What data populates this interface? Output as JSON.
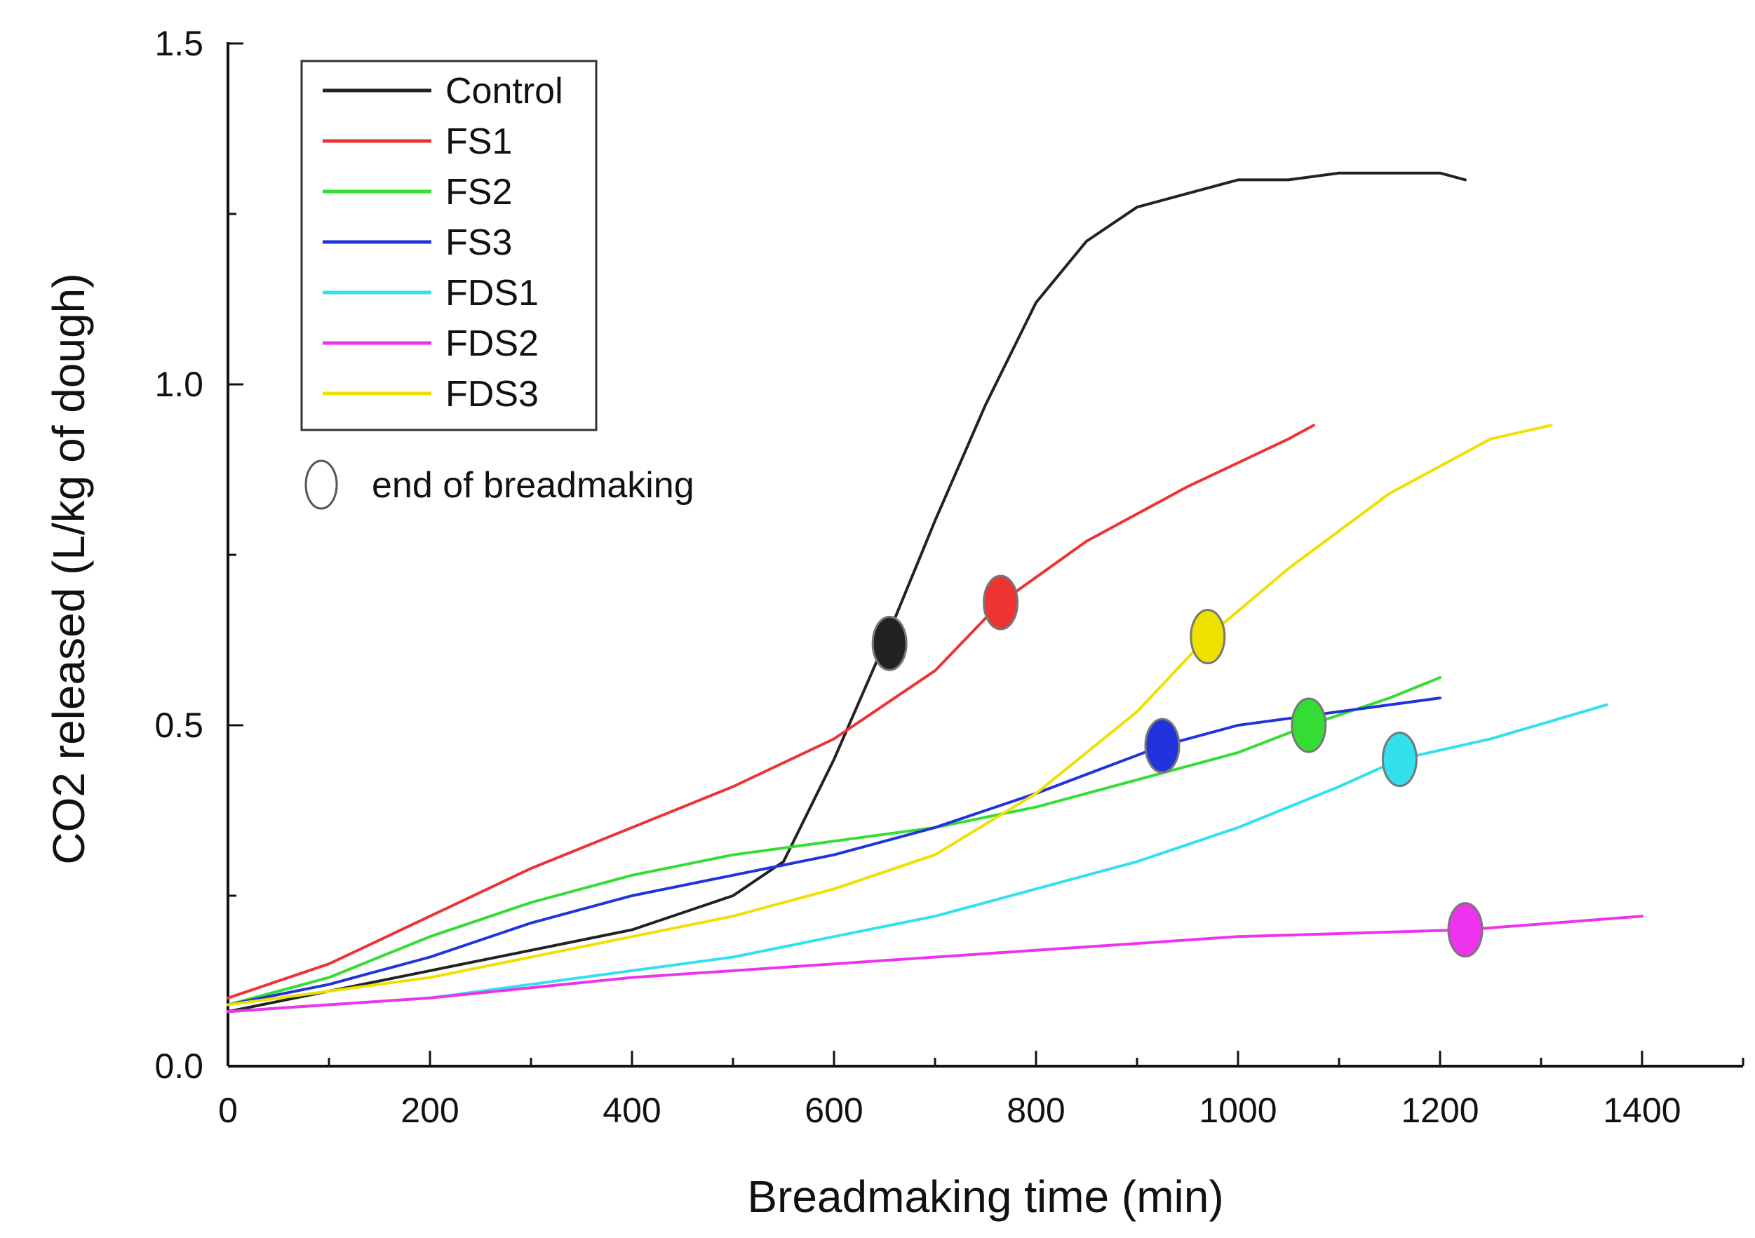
{
  "chart_data": {
    "type": "line",
    "title": "",
    "xlabel": "Breadmaking time (min)",
    "ylabel": "CO2 released (L/kg of dough)",
    "xlim": [
      0,
      1500
    ],
    "ylim": [
      0,
      1.5
    ],
    "x_ticks": [
      0,
      200,
      400,
      600,
      800,
      1000,
      1200,
      1400
    ],
    "x_tick_labels": [
      "0",
      "200",
      "400",
      "600",
      "800",
      "1000",
      "1200",
      "1400"
    ],
    "y_ticks": [
      0,
      0.5,
      1.0,
      1.5
    ],
    "y_tick_labels": [
      "0.0",
      "0.5",
      "1.0",
      "1.5"
    ],
    "legend_position": "top-left",
    "marker_legend_label": "end of breadmaking",
    "series": [
      {
        "name": "Control",
        "color": "#222222",
        "x": [
          0,
          100,
          200,
          300,
          400,
          500,
          550,
          600,
          650,
          700,
          750,
          800,
          850,
          900,
          950,
          1000,
          1050,
          1100,
          1150,
          1200,
          1225
        ],
        "y": [
          0.08,
          0.11,
          0.14,
          0.17,
          0.2,
          0.25,
          0.3,
          0.45,
          0.62,
          0.8,
          0.97,
          1.12,
          1.21,
          1.26,
          1.28,
          1.3,
          1.3,
          1.31,
          1.31,
          1.31,
          1.3
        ],
        "end_of_breadmaking": {
          "x": 655,
          "y": 0.62
        }
      },
      {
        "name": "FS1",
        "color": "#ee3333",
        "x": [
          0,
          100,
          200,
          300,
          400,
          500,
          600,
          700,
          765,
          850,
          950,
          1050,
          1075
        ],
        "y": [
          0.1,
          0.15,
          0.22,
          0.29,
          0.35,
          0.41,
          0.48,
          0.58,
          0.68,
          0.77,
          0.85,
          0.92,
          0.94
        ],
        "end_of_breadmaking": {
          "x": 765,
          "y": 0.68
        }
      },
      {
        "name": "FS2",
        "color": "#33dd33",
        "x": [
          0,
          100,
          200,
          300,
          400,
          500,
          600,
          700,
          800,
          900,
          1000,
          1070,
          1150,
          1200
        ],
        "y": [
          0.09,
          0.13,
          0.19,
          0.24,
          0.28,
          0.31,
          0.33,
          0.35,
          0.38,
          0.42,
          0.46,
          0.5,
          0.54,
          0.57
        ],
        "end_of_breadmaking": {
          "x": 1070,
          "y": 0.5
        }
      },
      {
        "name": "FS3",
        "color": "#2233dd",
        "x": [
          0,
          100,
          200,
          300,
          400,
          500,
          600,
          700,
          800,
          925,
          1000,
          1100,
          1200
        ],
        "y": [
          0.09,
          0.12,
          0.16,
          0.21,
          0.25,
          0.28,
          0.31,
          0.35,
          0.4,
          0.47,
          0.5,
          0.52,
          0.54
        ],
        "end_of_breadmaking": {
          "x": 925,
          "y": 0.47
        }
      },
      {
        "name": "FDS1",
        "color": "#33e0ee",
        "x": [
          0,
          100,
          200,
          300,
          400,
          500,
          600,
          700,
          800,
          900,
          1000,
          1100,
          1160,
          1250,
          1365
        ],
        "y": [
          0.08,
          0.09,
          0.1,
          0.12,
          0.14,
          0.16,
          0.19,
          0.22,
          0.26,
          0.3,
          0.35,
          0.41,
          0.45,
          0.48,
          0.53
        ],
        "end_of_breadmaking": {
          "x": 1160,
          "y": 0.45
        }
      },
      {
        "name": "FDS2",
        "color": "#ee33ee",
        "x": [
          0,
          200,
          400,
          600,
          800,
          1000,
          1225,
          1400
        ],
        "y": [
          0.08,
          0.1,
          0.13,
          0.15,
          0.17,
          0.19,
          0.2,
          0.22
        ],
        "end_of_breadmaking": {
          "x": 1225,
          "y": 0.2
        }
      },
      {
        "name": "FDS3",
        "color": "#f0e000",
        "x": [
          0,
          100,
          200,
          300,
          400,
          500,
          600,
          700,
          800,
          900,
          970,
          1050,
          1150,
          1250,
          1310
        ],
        "y": [
          0.09,
          0.11,
          0.13,
          0.16,
          0.19,
          0.22,
          0.26,
          0.31,
          0.4,
          0.52,
          0.63,
          0.73,
          0.84,
          0.92,
          0.94
        ],
        "end_of_breadmaking": {
          "x": 970,
          "y": 0.63
        }
      }
    ]
  }
}
